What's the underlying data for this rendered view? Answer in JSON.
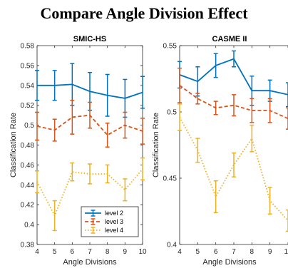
{
  "figure_title": "Compare Angle Division Effect",
  "chart_data": [
    {
      "type": "line",
      "title": "SMIC-HS",
      "xlabel": "Angle Divisions",
      "ylabel": "Classification Rate",
      "xlim": [
        4,
        10
      ],
      "ylim": [
        0.38,
        0.58
      ],
      "x_ticks": [
        4,
        5,
        6,
        7,
        8,
        9,
        10
      ],
      "y_ticks": [
        0.38,
        0.4,
        0.42,
        0.44,
        0.46,
        0.48,
        0.5,
        0.52,
        0.54,
        0.56,
        0.58
      ],
      "y_tick_labels": [
        "0.38",
        "0.4",
        "0.42",
        "0.44",
        "0.46",
        "0.48",
        "0.5",
        "0.52",
        "0.54",
        "0.56",
        "0.58"
      ],
      "legend": {
        "placement": "bottom-right"
      },
      "series": [
        {
          "name": "level 2",
          "color": "#0072BD",
          "style": "solid",
          "x": [
            4,
            5,
            6,
            7,
            8,
            9,
            10
          ],
          "y": [
            0.54,
            0.54,
            0.541,
            0.534,
            0.53,
            0.527,
            0.533
          ],
          "err": [
            0.015,
            0.015,
            0.021,
            0.019,
            0.021,
            0.019,
            0.016
          ]
        },
        {
          "name": "level 3",
          "color": "#D95319",
          "style": "dashed",
          "x": [
            4,
            5,
            6,
            7,
            8,
            9,
            10
          ],
          "y": [
            0.499,
            0.495,
            0.508,
            0.51,
            0.49,
            0.5,
            0.494
          ],
          "err": [
            0.014,
            0.011,
            0.017,
            0.013,
            0.012,
            0.013,
            0.013
          ]
        },
        {
          "name": "level 4",
          "color": "#EDB120",
          "style": "dotted",
          "x": [
            4,
            5,
            6,
            7,
            8,
            9,
            10
          ],
          "y": [
            0.443,
            0.409,
            0.453,
            0.451,
            0.451,
            0.435,
            0.456
          ],
          "err": [
            0.011,
            0.015,
            0.009,
            0.01,
            0.009,
            0.011,
            0.011
          ]
        }
      ]
    },
    {
      "type": "line",
      "title": "CASME II",
      "xlabel": "Angle Divisions",
      "ylabel": "Classification Rate",
      "xlim": [
        4,
        10
      ],
      "ylim": [
        0.4,
        0.55
      ],
      "x_ticks": [
        4,
        5,
        6,
        7,
        8,
        9,
        10
      ],
      "x_tick_labels": [
        "4",
        "5",
        "6",
        "7",
        "8",
        "9",
        "10"
      ],
      "y_ticks": [
        0.4,
        0.45,
        0.5,
        0.55
      ],
      "y_tick_labels": [
        "0.4",
        "0.45",
        "0.5",
        "0.55"
      ],
      "series": [
        {
          "name": "level 2",
          "color": "#0072BD",
          "style": "solid",
          "x": [
            4,
            5,
            6,
            7,
            8,
            9,
            10
          ],
          "y": [
            0.528,
            0.523,
            0.535,
            0.54,
            0.516,
            0.516,
            0.513
          ],
          "err": [
            0.01,
            0.011,
            0.009,
            0.006,
            0.011,
            0.008,
            0.009
          ]
        },
        {
          "name": "level 3",
          "color": "#D95319",
          "style": "dashed",
          "x": [
            4,
            5,
            6,
            7,
            8,
            9,
            10
          ],
          "y": [
            0.52,
            0.51,
            0.503,
            0.505,
            0.501,
            0.501,
            0.495
          ],
          "err": [
            0.013,
            0.004,
            0.005,
            0.008,
            0.009,
            0.009,
            0.008
          ]
        },
        {
          "name": "level 4",
          "color": "#EDB120",
          "style": "dotted",
          "x": [
            4,
            5,
            6,
            7,
            8,
            9,
            10
          ],
          "y": [
            0.496,
            0.471,
            0.436,
            0.46,
            0.48,
            0.433,
            0.418
          ],
          "err": [
            0.01,
            0.009,
            0.012,
            0.009,
            0.01,
            0.01,
            0.008
          ]
        }
      ]
    }
  ]
}
